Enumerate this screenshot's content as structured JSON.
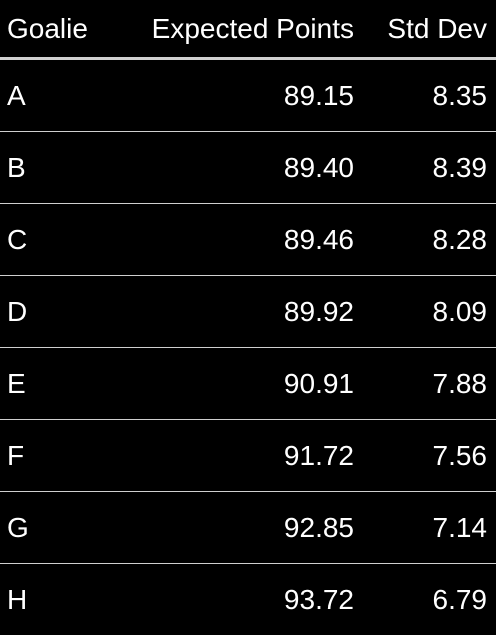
{
  "table": {
    "headers": {
      "goalie": "Goalie",
      "expected_points": "Expected Points",
      "std_dev": "Std Dev"
    },
    "rows": [
      {
        "goalie": "A",
        "expected_points": "89.15",
        "std_dev": "8.35"
      },
      {
        "goalie": "B",
        "expected_points": "89.40",
        "std_dev": "8.39"
      },
      {
        "goalie": "C",
        "expected_points": "89.46",
        "std_dev": "8.28"
      },
      {
        "goalie": "D",
        "expected_points": "89.92",
        "std_dev": "8.09"
      },
      {
        "goalie": "E",
        "expected_points": "90.91",
        "std_dev": "7.88"
      },
      {
        "goalie": "F",
        "expected_points": "91.72",
        "std_dev": "7.56"
      },
      {
        "goalie": "G",
        "expected_points": "92.85",
        "std_dev": "7.14"
      },
      {
        "goalie": "H",
        "expected_points": "93.72",
        "std_dev": "6.79"
      }
    ]
  },
  "colors": {
    "background": "#000000",
    "text": "#ffffff",
    "header_rule": "#d0d0d0",
    "row_rule": "#cfcfcf"
  }
}
